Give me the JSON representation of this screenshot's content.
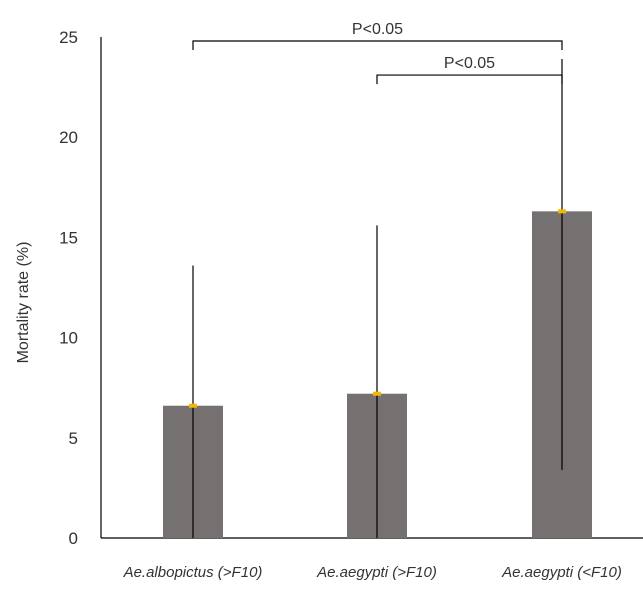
{
  "chart_data": {
    "type": "bar",
    "categories": [
      "Ae.albopictus (>F10)",
      "Ae.aegypti (>F10)",
      "Ae.aegypti (<F10)"
    ],
    "values": [
      6.6,
      7.2,
      16.3
    ],
    "error_low": [
      0,
      0,
      3.4
    ],
    "error_high": [
      13.6,
      15.6,
      23.9
    ],
    "xlabel": "",
    "ylabel": "Mortality rate (%)",
    "ylim": [
      0,
      25
    ],
    "yticks": [
      0,
      5,
      10,
      15,
      20,
      25
    ],
    "grid": false,
    "colors": {
      "bar": "#757170",
      "marker": "#f5b800",
      "error_bar": "#000000",
      "axis": "#000000"
    },
    "significance": [
      {
        "label": "P<0.05",
        "from": 0,
        "to": 2,
        "y": 24.8
      },
      {
        "label": "P<0.05",
        "from": 1,
        "to": 2,
        "y": 23.1
      }
    ]
  }
}
